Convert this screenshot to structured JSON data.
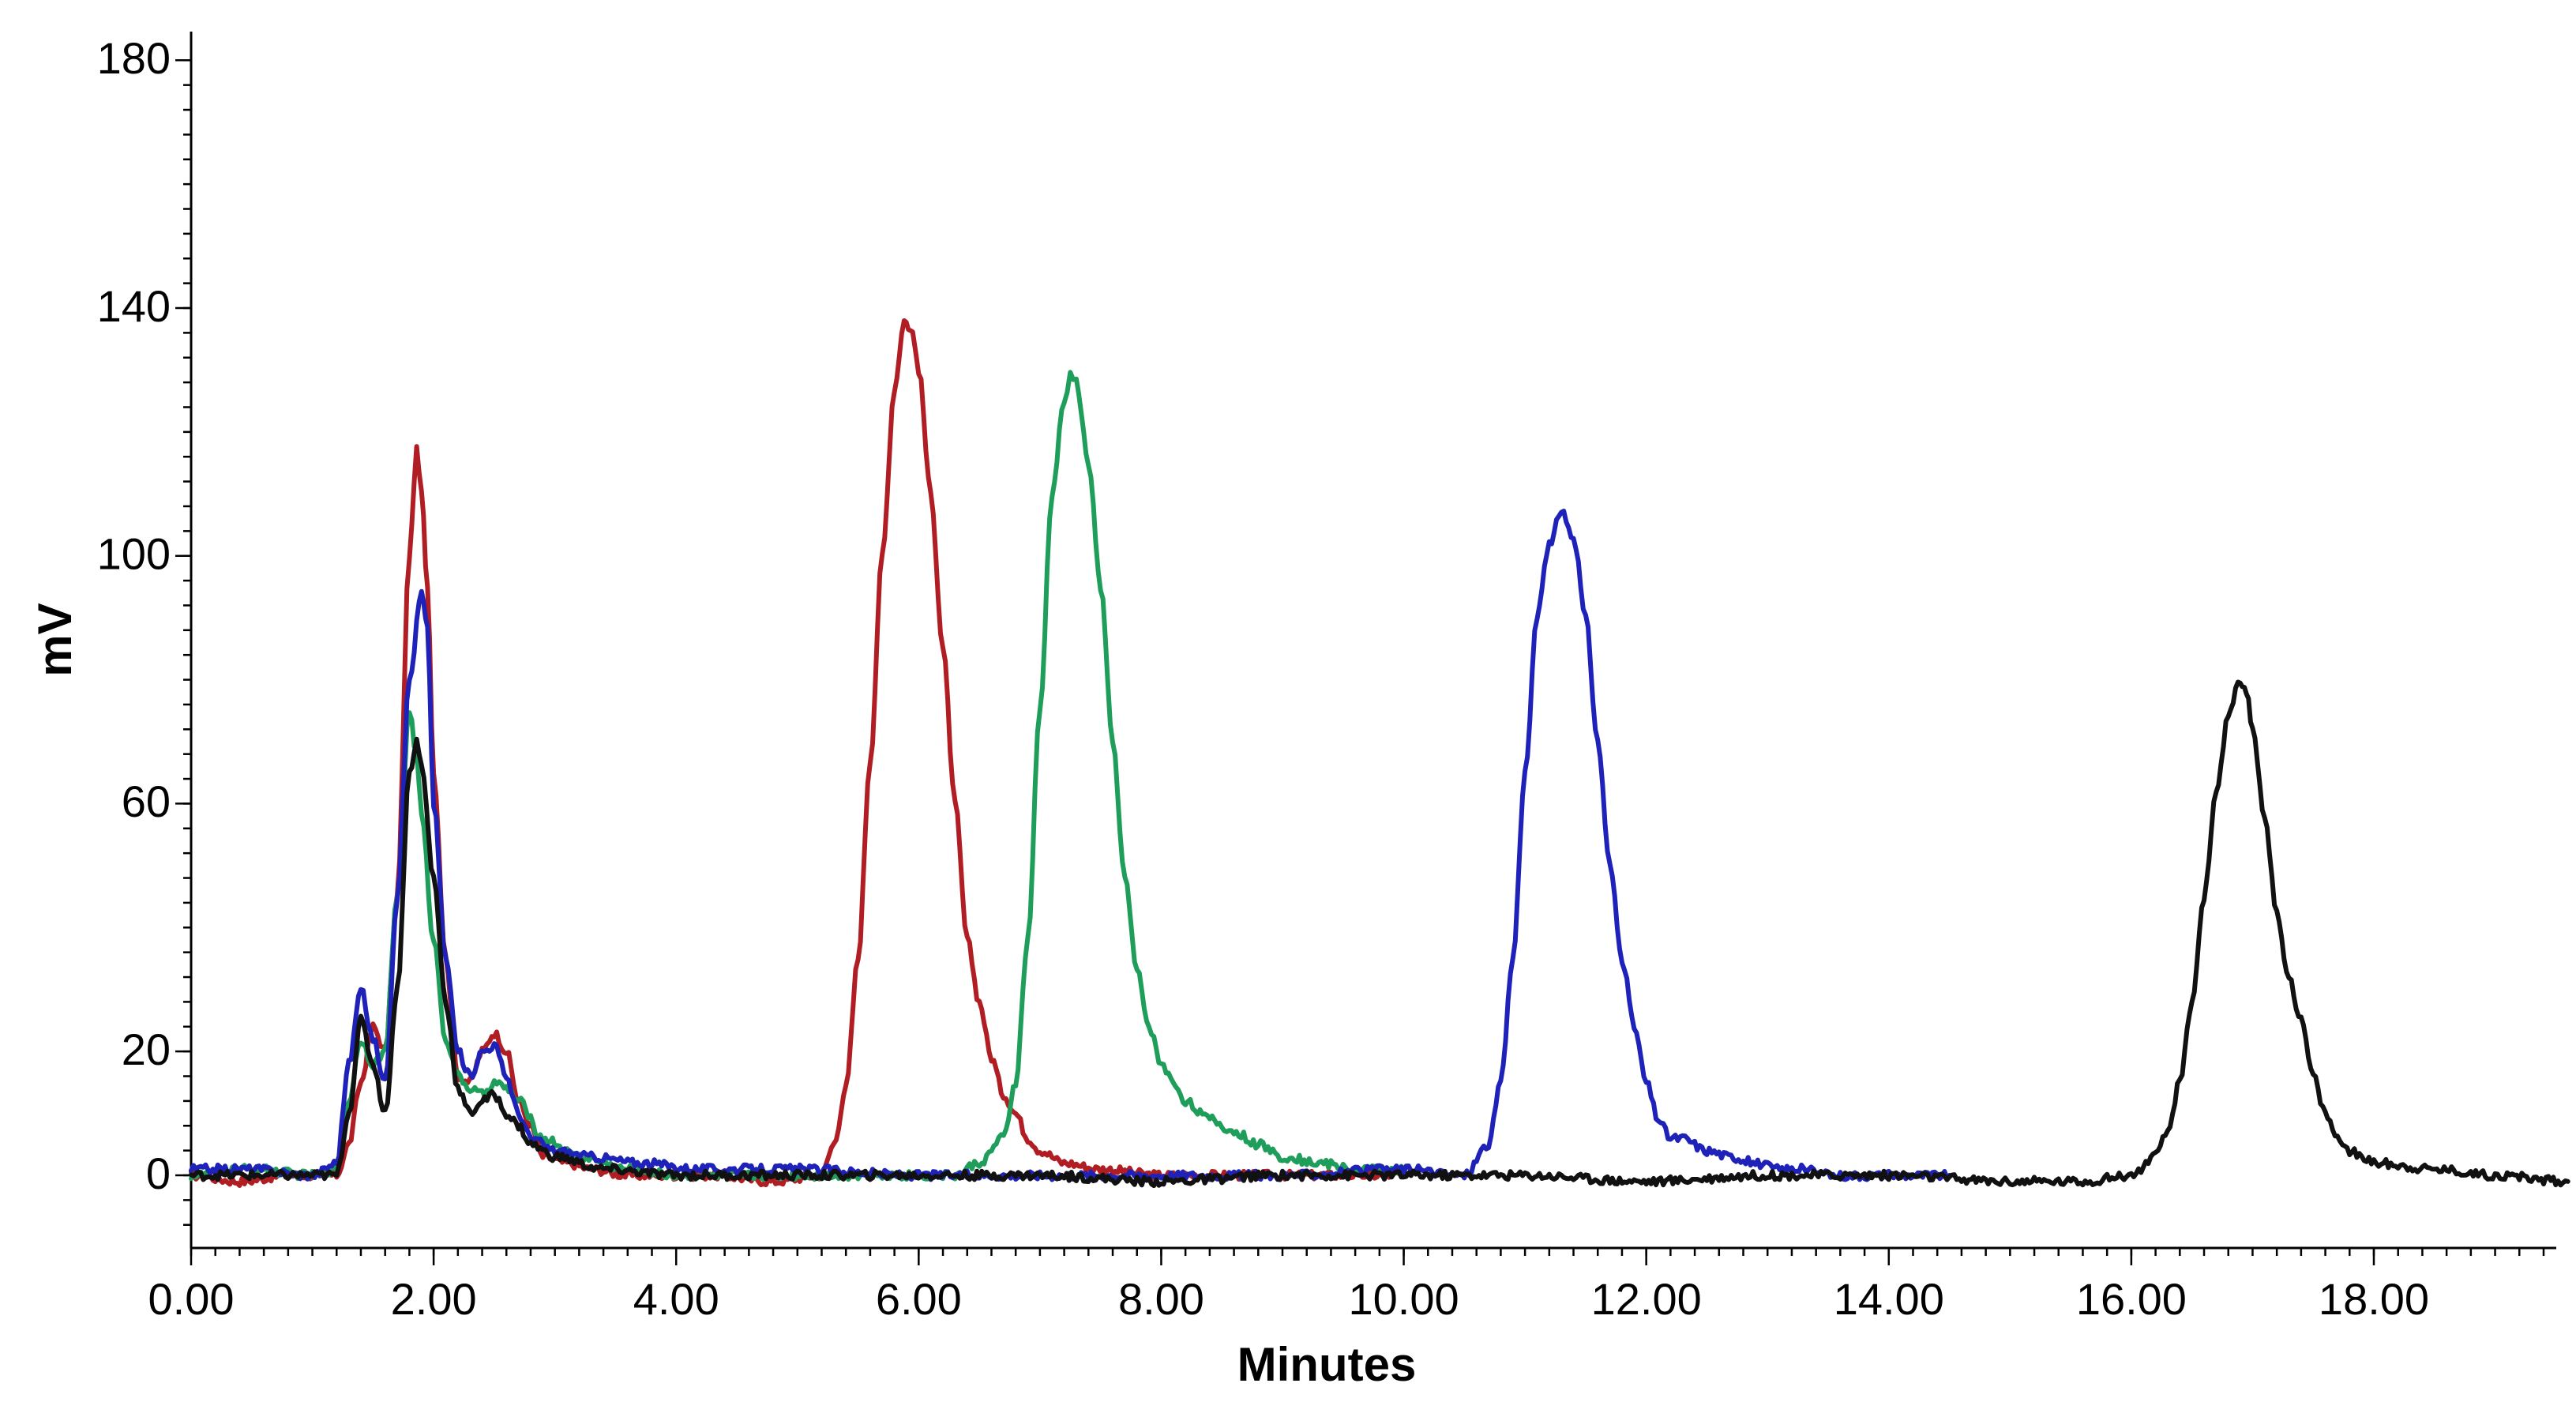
{
  "chart_data": {
    "type": "line",
    "title": "",
    "xlabel": "Minutes",
    "ylabel": "mV",
    "xlim": [
      0,
      19.6
    ],
    "ylim": [
      -8,
      180
    ],
    "x_ticks": [
      {
        "value": 0,
        "label": "0.00"
      },
      {
        "value": 2,
        "label": "2.00"
      },
      {
        "value": 4,
        "label": "4.00"
      },
      {
        "value": 6,
        "label": "6.00"
      },
      {
        "value": 8,
        "label": "8.00"
      },
      {
        "value": 10,
        "label": "10.00"
      },
      {
        "value": 12,
        "label": "12.00"
      },
      {
        "value": 14,
        "label": "14.00"
      },
      {
        "value": 16,
        "label": "16.00"
      },
      {
        "value": 18,
        "label": "18.00"
      }
    ],
    "y_ticks": [
      {
        "value": 0,
        "label": "0"
      },
      {
        "value": 20,
        "label": "20"
      },
      {
        "value": 60,
        "label": "60"
      },
      {
        "value": 100,
        "label": "100"
      },
      {
        "value": 140,
        "label": "140"
      },
      {
        "value": 180,
        "label": "180"
      }
    ],
    "series": [
      {
        "name": "red",
        "color": "#b01e23",
        "x": [
          0,
          0.4,
          0.8,
          1.2,
          1.3,
          1.4,
          1.5,
          1.6,
          1.7,
          1.8,
          1.86,
          1.9,
          1.95,
          2.0,
          2.1,
          2.2,
          2.3,
          2.4,
          2.5,
          2.6,
          2.7,
          2.8,
          2.9,
          3.1,
          3.3,
          3.6,
          3.9,
          4.3,
          4.8,
          5.2,
          5.3,
          5.4,
          5.5,
          5.6,
          5.7,
          5.8,
          5.88,
          5.95,
          6.0,
          6.1,
          6.2,
          6.3,
          6.4,
          6.5,
          6.6,
          6.7,
          6.8,
          6.9,
          7.0,
          7.2,
          7.5,
          8.0,
          9.0,
          10.0
        ],
        "y": [
          0,
          -1,
          0,
          0,
          5,
          15,
          24,
          20,
          45,
          100,
          117,
          110,
          95,
          65,
          35,
          16,
          15,
          20,
          23,
          20,
          12,
          8,
          3,
          2,
          1,
          0,
          0,
          0,
          -1,
          0,
          5,
          14,
          35,
          67,
          100,
          127,
          138,
          136,
          130,
          110,
          85,
          60,
          38,
          28,
          19,
          13,
          10,
          6,
          4,
          2,
          1,
          0,
          0,
          0
        ]
      },
      {
        "name": "green",
        "color": "#1f9e5b",
        "x": [
          0,
          0.5,
          1.0,
          1.2,
          1.3,
          1.4,
          1.5,
          1.6,
          1.7,
          1.8,
          1.86,
          1.9,
          2.0,
          2.1,
          2.2,
          2.3,
          2.4,
          2.5,
          2.6,
          2.7,
          2.9,
          3.2,
          3.6,
          4.0,
          4.5,
          5.0,
          5.5,
          6.0,
          6.3,
          6.5,
          6.7,
          6.8,
          6.9,
          7.0,
          7.1,
          7.2,
          7.25,
          7.3,
          7.4,
          7.5,
          7.6,
          7.7,
          7.8,
          7.9,
          8.0,
          8.1,
          8.2,
          8.4,
          8.6,
          8.8,
          9.0,
          9.3,
          9.6,
          10.0
        ],
        "y": [
          0,
          1,
          0,
          1,
          12,
          22,
          18,
          20,
          45,
          75,
          68,
          58,
          38,
          22,
          16,
          14,
          13,
          15,
          14,
          12,
          6,
          3,
          1,
          0,
          0,
          0,
          0,
          0,
          0,
          2,
          6,
          15,
          38,
          75,
          110,
          125,
          129,
          128,
          115,
          95,
          70,
          48,
          33,
          24,
          18,
          15,
          12,
          9,
          7,
          5,
          3,
          2,
          1,
          1
        ]
      },
      {
        "name": "blue",
        "color": "#1f22b8",
        "x": [
          0,
          0.5,
          1.0,
          1.2,
          1.3,
          1.4,
          1.5,
          1.6,
          1.7,
          1.8,
          1.9,
          1.95,
          2.0,
          2.1,
          2.2,
          2.3,
          2.4,
          2.5,
          2.6,
          2.7,
          2.8,
          3.0,
          3.3,
          3.7,
          4.2,
          5.0,
          6.0,
          7.0,
          8.0,
          9.0,
          10.0,
          10.5,
          10.7,
          10.8,
          10.9,
          11.0,
          11.1,
          11.2,
          11.3,
          11.4,
          11.5,
          11.6,
          11.7,
          11.8,
          11.9,
          12.0,
          12.1,
          12.2,
          12.3,
          12.5,
          12.7,
          12.9,
          13.1,
          13.3,
          13.5,
          13.8,
          14.2,
          14.5
        ],
        "y": [
          1,
          1,
          0,
          2,
          18,
          30,
          22,
          15,
          45,
          80,
          94,
          88,
          60,
          35,
          20,
          16,
          20,
          21,
          16,
          10,
          6,
          4,
          3,
          2,
          1,
          1,
          0,
          0,
          0,
          0,
          1,
          0,
          5,
          15,
          35,
          65,
          90,
          102,
          107,
          103,
          90,
          70,
          50,
          35,
          24,
          15,
          9,
          6,
          6,
          4,
          3,
          2,
          1,
          1,
          0,
          0,
          0,
          0
        ]
      },
      {
        "name": "black",
        "color": "#111111",
        "x": [
          0,
          0.5,
          1.0,
          1.2,
          1.3,
          1.4,
          1.5,
          1.6,
          1.7,
          1.8,
          1.86,
          1.9,
          2.0,
          2.1,
          2.2,
          2.3,
          2.4,
          2.5,
          2.6,
          2.7,
          2.8,
          3.0,
          3.4,
          4.0,
          5.0,
          6.0,
          7.0,
          8.0,
          9.0,
          10.0,
          11.0,
          12.0,
          13.0,
          14.0,
          15.0,
          15.6,
          16.0,
          16.2,
          16.3,
          16.4,
          16.5,
          16.6,
          16.7,
          16.8,
          16.88,
          16.95,
          17.0,
          17.1,
          17.2,
          17.3,
          17.4,
          17.5,
          17.6,
          17.7,
          17.8,
          17.9,
          18.0,
          18.5,
          19.0,
          19.6
        ],
        "y": [
          0,
          0,
          0,
          0,
          10,
          25,
          18,
          10,
          30,
          65,
          70,
          66,
          48,
          28,
          14,
          10,
          12,
          13,
          10,
          8,
          5,
          3,
          1,
          0,
          0,
          0,
          0,
          -1,
          0,
          0,
          0,
          -1,
          0,
          0,
          -1,
          -1,
          0,
          3,
          7,
          15,
          28,
          45,
          62,
          74,
          79,
          78,
          72,
          58,
          42,
          32,
          25,
          16,
          10,
          6,
          4,
          3,
          2,
          1,
          0,
          -1
        ]
      }
    ]
  }
}
